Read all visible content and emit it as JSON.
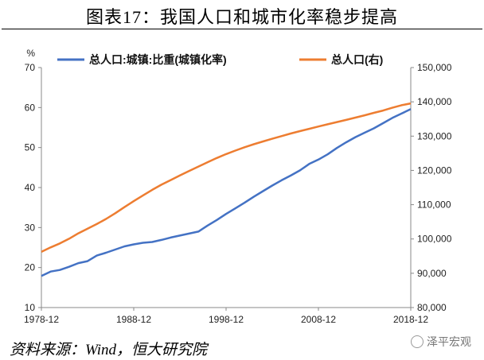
{
  "page_title": "图表17：我国人口和城市化率稳步提高",
  "source_note": "资料来源：Wind，恒大研究院",
  "watermark_text": "泽平宏观",
  "colors": {
    "urbanization": "#4472C4",
    "population": "#ED7D31"
  },
  "chart_data": {
    "type": "line",
    "left_axis_unit": "%",
    "legend_placement": "top",
    "grid": false,
    "x_ticks": [
      "1978-12",
      "1988-12",
      "1998-12",
      "2008-12",
      "2018-12"
    ],
    "y_left": {
      "ticks": [
        "10",
        "20",
        "30",
        "40",
        "50",
        "60",
        "70"
      ],
      "range": [
        10,
        70
      ]
    },
    "y_right": {
      "ticks": [
        "80,000",
        "90,000",
        "100,000",
        "110,000",
        "120,000",
        "130,000",
        "140,000",
        "150,000"
      ],
      "range": [
        80000,
        150000
      ]
    },
    "x": [
      1978,
      1979,
      1980,
      1981,
      1982,
      1983,
      1984,
      1985,
      1986,
      1987,
      1988,
      1989,
      1990,
      1991,
      1992,
      1993,
      1994,
      1995,
      1996,
      1997,
      1998,
      1999,
      2000,
      2001,
      2002,
      2003,
      2004,
      2005,
      2006,
      2007,
      2008,
      2009,
      2010,
      2011,
      2012,
      2013,
      2014,
      2015,
      2016,
      2017,
      2018
    ],
    "series": [
      {
        "name": "总人口:城镇:比重(城镇化率)",
        "axis": "left",
        "values": [
          17.9,
          19.0,
          19.4,
          20.2,
          21.1,
          21.6,
          23.0,
          23.7,
          24.5,
          25.3,
          25.8,
          26.2,
          26.4,
          26.9,
          27.5,
          28.0,
          28.5,
          29.0,
          30.5,
          31.9,
          33.4,
          34.8,
          36.2,
          37.7,
          39.1,
          40.5,
          41.8,
          43.0,
          44.3,
          45.9,
          47.0,
          48.3,
          49.9,
          51.3,
          52.6,
          53.7,
          54.8,
          56.1,
          57.4,
          58.5,
          59.6
        ]
      },
      {
        "name": "总人口(右)",
        "axis": "right",
        "values": [
          96259,
          97542,
          98705,
          100072,
          101654,
          103008,
          104357,
          105851,
          107507,
          109300,
          111026,
          112704,
          114333,
          115823,
          117171,
          118517,
          119850,
          121121,
          122389,
          123626,
          124761,
          125786,
          126743,
          127627,
          128453,
          129227,
          129988,
          130756,
          131448,
          132129,
          132802,
          133450,
          134091,
          134735,
          135404,
          136072,
          136782,
          137462,
          138271,
          139008,
          139538
        ]
      }
    ]
  }
}
